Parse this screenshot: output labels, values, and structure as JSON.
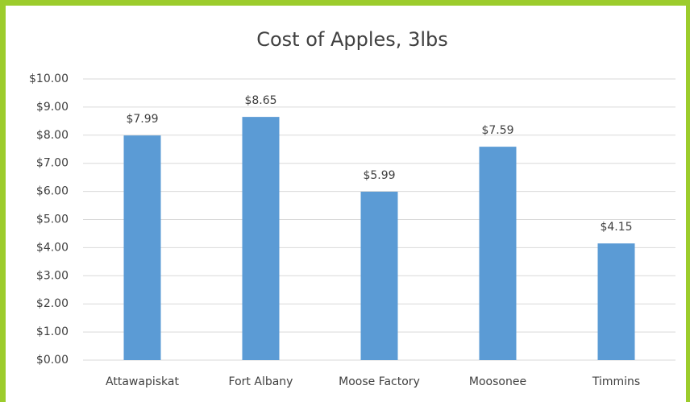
{
  "chart_data": {
    "type": "bar",
    "title": "Cost of Apples, 3lbs",
    "categories": [
      "Attawapiskat",
      "Fort Albany",
      "Moose Factory",
      "Moosonee",
      "Timmins"
    ],
    "values": [
      7.99,
      8.65,
      5.99,
      7.59,
      4.15
    ],
    "value_labels": [
      "$7.99",
      "$8.65",
      "$5.99",
      "$7.59",
      "$4.15"
    ],
    "color": "#5b9bd5",
    "ylim": [
      0,
      10
    ],
    "yticks": [
      {
        "value": 0,
        "label": "$0.00"
      },
      {
        "value": 1,
        "label": "$1.00"
      },
      {
        "value": 2,
        "label": "$2.00"
      },
      {
        "value": 3,
        "label": "$3.00"
      },
      {
        "value": 4,
        "label": "$4.00"
      },
      {
        "value": 5,
        "label": "$5.00"
      },
      {
        "value": 6,
        "label": "$6.00"
      },
      {
        "value": 7,
        "label": "$7.00"
      },
      {
        "value": 8,
        "label": "$8.00"
      },
      {
        "value": 9,
        "label": "$9.00"
      },
      {
        "value": 10,
        "label": "$10.00"
      }
    ],
    "grid": true
  }
}
